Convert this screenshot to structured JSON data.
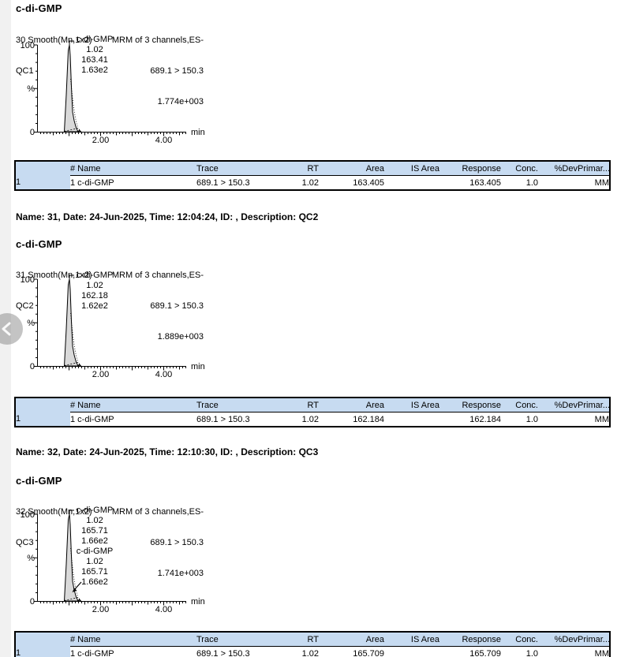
{
  "app": {
    "background": "#ffffff",
    "left_strip_color": "#f1f1f1",
    "table_header_blue": "#c7dbf1",
    "peak_fill": "#d9d9d9"
  },
  "nav": {
    "prev_icon": "chevron-left"
  },
  "table": {
    "columns": [
      "",
      "# Name",
      "Trace",
      "RT",
      "Area",
      "IS Area",
      "Response",
      "Conc.",
      "%Dev",
      "Primar..."
    ]
  },
  "sections": [
    {
      "chart": {
        "title": "c-di-GMP",
        "process_line": "30 Smooth(Mn,1x2)",
        "sample_line": "QC1",
        "acq_line1": "MRM of 3 channels,ES-",
        "acq_line2": "689.1 > 150.3",
        "acq_line3": "1.774e+003",
        "y_top": "100",
        "y_mid": "%",
        "y_bottom": "0",
        "x_tick1": "2.00",
        "x_tick2": "4.00",
        "x_unit": "min",
        "peak": {
          "name": "c-di-GMP",
          "rt": "1.02",
          "area": "163.41",
          "height": "1.63e2"
        }
      },
      "row": {
        "num": "1",
        "name": "1 c-di-GMP",
        "trace": "689.1 > 150.3",
        "rt": "1.02",
        "area": "163.405",
        "is_area": "",
        "response": "163.405",
        "conc": "1.0",
        "pdev": "",
        "primary": "MM"
      }
    },
    {
      "heading": "Name: 31, Date: 24-Jun-2025, Time: 12:04:24, ID: , Description: QC2",
      "chart": {
        "title": "c-di-GMP",
        "process_line": "31 Smooth(Mn,1x2)",
        "sample_line": "QC2",
        "acq_line1": "MRM of 3 channels,ES-",
        "acq_line2": "689.1 > 150.3",
        "acq_line3": "1.889e+003",
        "y_top": "100",
        "y_mid": "%",
        "y_bottom": "0",
        "x_tick1": "2.00",
        "x_tick2": "4.00",
        "x_unit": "min",
        "peak": {
          "name": "c-di-GMP",
          "rt": "1.02",
          "area": "162.18",
          "height": "1.62e2"
        }
      },
      "row": {
        "num": "1",
        "name": "1 c-di-GMP",
        "trace": "689.1 > 150.3",
        "rt": "1.02",
        "area": "162.184",
        "is_area": "",
        "response": "162.184",
        "conc": "1.0",
        "pdev": "",
        "primary": "MM"
      }
    },
    {
      "heading": "Name: 32, Date: 24-Jun-2025, Time: 12:10:30, ID: , Description: QC3",
      "chart": {
        "title": "c-di-GMP",
        "process_line": "32 Smooth(Mn,1x2)",
        "sample_line": "QC3",
        "acq_line1": "MRM of 3 channels,ES-",
        "acq_line2": "689.1 > 150.3",
        "acq_line3": "1.741e+003",
        "y_top": "100",
        "y_mid": "%",
        "y_bottom": "0",
        "x_tick1": "2.00",
        "x_tick2": "4.00",
        "x_unit": "min",
        "peak": {
          "name": "c-di-GMP",
          "rt": "1.02",
          "area": "165.71",
          "height": "1.66e2"
        },
        "peak2": {
          "name": "c-di-GMP",
          "rt": "1.02",
          "area": "165.71",
          "height": "1.66e2"
        }
      },
      "row": {
        "num": "1",
        "name": "1 c-di-GMP",
        "trace": "689.1 > 150.3",
        "rt": "1.02",
        "area": "165.709",
        "is_area": "",
        "response": "165.709",
        "conc": "1.0",
        "pdev": "",
        "primary": "MM"
      }
    }
  ],
  "chart_data": [
    {
      "type": "area",
      "title": "c-di-GMP (QC1)",
      "trace": "689.1 > 150.3",
      "signal": "MRM of 3 channels,ES-",
      "intensity_max": "1.774e+003",
      "x_unit": "min",
      "x_range": [
        0,
        4.7
      ],
      "y_range": [
        0,
        100
      ],
      "x_ticks": [
        "2.00",
        "4.00"
      ],
      "y_ticks": [
        "0",
        "%",
        "100"
      ],
      "peaks": [
        {
          "rt": 1.02,
          "area": 163.41,
          "height": "1.63e2",
          "height_pct": 100
        }
      ]
    },
    {
      "type": "area",
      "title": "c-di-GMP (QC2)",
      "trace": "689.1 > 150.3",
      "signal": "MRM of 3 channels,ES-",
      "intensity_max": "1.889e+003",
      "x_unit": "min",
      "x_range": [
        0,
        4.7
      ],
      "y_range": [
        0,
        100
      ],
      "x_ticks": [
        "2.00",
        "4.00"
      ],
      "y_ticks": [
        "0",
        "%",
        "100"
      ],
      "peaks": [
        {
          "rt": 1.02,
          "area": 162.18,
          "height": "1.62e2",
          "height_pct": 100
        }
      ]
    },
    {
      "type": "area",
      "title": "c-di-GMP (QC3)",
      "trace": "689.1 > 150.3",
      "signal": "MRM of 3 channels,ES-",
      "intensity_max": "1.741e+003",
      "x_unit": "min",
      "x_range": [
        0,
        4.7
      ],
      "y_range": [
        0,
        100
      ],
      "x_ticks": [
        "2.00",
        "4.00"
      ],
      "y_ticks": [
        "0",
        "%",
        "100"
      ],
      "peaks": [
        {
          "rt": 1.02,
          "area": 165.71,
          "height": "1.66e2",
          "height_pct": 100
        }
      ]
    }
  ]
}
